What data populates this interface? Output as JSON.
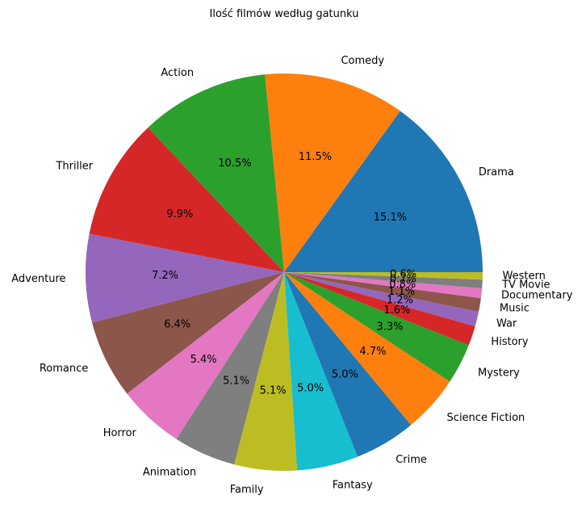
{
  "chart_data": {
    "type": "pie",
    "title": "Ilość filmów według gatunku",
    "start_angle_deg": 0,
    "direction": "counterclockwise",
    "slices": [
      {
        "label": "Drama",
        "value": 15.1,
        "pct_label": "15.1%",
        "color": "#1f77b4"
      },
      {
        "label": "Comedy",
        "value": 11.5,
        "pct_label": "11.5%",
        "color": "#ff7f0e"
      },
      {
        "label": "Action",
        "value": 10.5,
        "pct_label": "10.5%",
        "color": "#2ca02c"
      },
      {
        "label": "Thriller",
        "value": 9.9,
        "pct_label": "9.9%",
        "color": "#d62728"
      },
      {
        "label": "Adventure",
        "value": 7.2,
        "pct_label": "7.2%",
        "color": "#9467bd"
      },
      {
        "label": "Romance",
        "value": 6.4,
        "pct_label": "6.4%",
        "color": "#8c564b"
      },
      {
        "label": "Horror",
        "value": 5.4,
        "pct_label": "5.4%",
        "color": "#e377c2"
      },
      {
        "label": "Animation",
        "value": 5.1,
        "pct_label": "5.1%",
        "color": "#7f7f7f"
      },
      {
        "label": "Family",
        "value": 5.1,
        "pct_label": "5.1%",
        "color": "#bcbd22"
      },
      {
        "label": "Fantasy",
        "value": 5.0,
        "pct_label": "5.0%",
        "color": "#17becf"
      },
      {
        "label": "Crime",
        "value": 5.0,
        "pct_label": "5.0%",
        "color": "#1f77b4"
      },
      {
        "label": "Science Fiction",
        "value": 4.7,
        "pct_label": "4.7%",
        "color": "#ff7f0e"
      },
      {
        "label": "Mystery",
        "value": 3.3,
        "pct_label": "3.3%",
        "color": "#2ca02c"
      },
      {
        "label": "History",
        "value": 1.6,
        "pct_label": "1.6%",
        "color": "#d62728"
      },
      {
        "label": "War",
        "value": 1.2,
        "pct_label": "1.2%",
        "color": "#9467bd"
      },
      {
        "label": "Music",
        "value": 1.1,
        "pct_label": "1.1%",
        "color": "#8c564b"
      },
      {
        "label": "Documentary",
        "value": 0.8,
        "pct_label": "0.8%",
        "color": "#e377c2"
      },
      {
        "label": "TV Movie",
        "value": 0.7,
        "pct_label": "0.7%",
        "color": "#7f7f7f"
      },
      {
        "label": "Western",
        "value": 0.6,
        "pct_label": "0.6%",
        "color": "#bcbd22"
      }
    ]
  }
}
